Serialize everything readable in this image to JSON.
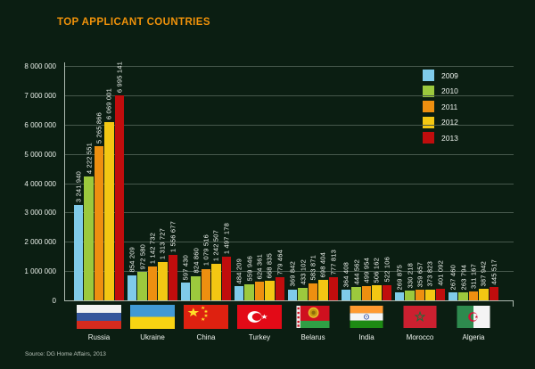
{
  "source": "Source: DG Home Affairs, 2013",
  "colors": {
    "title": "#f0920a",
    "background": "#0b1e12",
    "text": "#eef3ee",
    "gridline": "#46584c",
    "axis": "#aebbb1"
  },
  "chart_data": {
    "type": "bar",
    "title": "TOP APPLICANT COUNTRIES",
    "categories": [
      "Russia",
      "Ukraine",
      "China",
      "Turkey",
      "Belarus",
      "India",
      "Morocco",
      "Algeria"
    ],
    "flags": [
      "russia-flag",
      "ukraine-flag",
      "china-flag",
      "turkey-flag",
      "belarus-flag",
      "india-flag",
      "morocco-flag",
      "algeria-flag"
    ],
    "series": [
      {
        "name": "2009",
        "color": "#7fcbea",
        "values": [
          3241940,
          854209,
          597430,
          484209,
          369842,
          364408,
          269875,
          267460
        ]
      },
      {
        "name": "2010",
        "color": "#9cc93d",
        "values": [
          4222551,
          972580,
          824860,
          559946,
          433102,
          444562,
          330218,
          263794
        ]
      },
      {
        "name": "2011",
        "color": "#ee8f10",
        "values": [
          5265866,
          1142732,
          1079516,
          624361,
          583871,
          499954,
          359657,
          311167
        ]
      },
      {
        "name": "2012",
        "color": "#f3c713",
        "values": [
          6069001,
          1313727,
          1242507,
          668835,
          698404,
          506162,
          373823,
          387942
        ]
      },
      {
        "name": "2013",
        "color": "#c00d0d",
        "values": [
          6995141,
          1556677,
          1497178,
          779464,
          777813,
          522106,
          401092,
          445517
        ]
      }
    ],
    "ylim": [
      0,
      8000000
    ],
    "ytick_step": 1000000,
    "ytick_labels": [
      "0",
      "1 000 000",
      "2 000 000",
      "3 000 000",
      "4 000 000",
      "5 000 000",
      "6 000 000",
      "7 000 000",
      "8 000 000"
    ],
    "grid": true,
    "legend_position": "top-right",
    "bar_labels": "values shown rotated above each bar, space-separated thousands"
  }
}
